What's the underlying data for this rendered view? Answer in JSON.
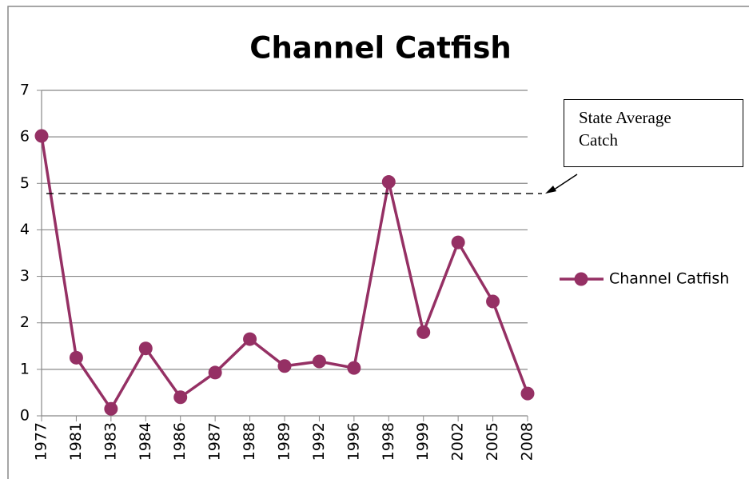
{
  "chart_data": {
    "type": "line",
    "title": "Channel Catfish",
    "categories": [
      "1977",
      "1981",
      "1983",
      "1984",
      "1986",
      "1987",
      "1988",
      "1989",
      "1992",
      "1996",
      "1998",
      "1999",
      "2002",
      "2005",
      "2008"
    ],
    "series": [
      {
        "name": "Channel Catfish",
        "color": "#953064",
        "values": [
          6.02,
          1.25,
          0.15,
          1.45,
          0.4,
          0.93,
          1.65,
          1.07,
          1.17,
          1.03,
          5.03,
          1.8,
          3.73,
          2.46,
          0.48
        ]
      }
    ],
    "ylim": [
      0,
      7
    ],
    "yticks": [
      0,
      1,
      2,
      3,
      4,
      5,
      6,
      7
    ],
    "grid": true,
    "legend": "right",
    "reference_line": {
      "value": 4.78,
      "label": "State Average Catch"
    }
  }
}
